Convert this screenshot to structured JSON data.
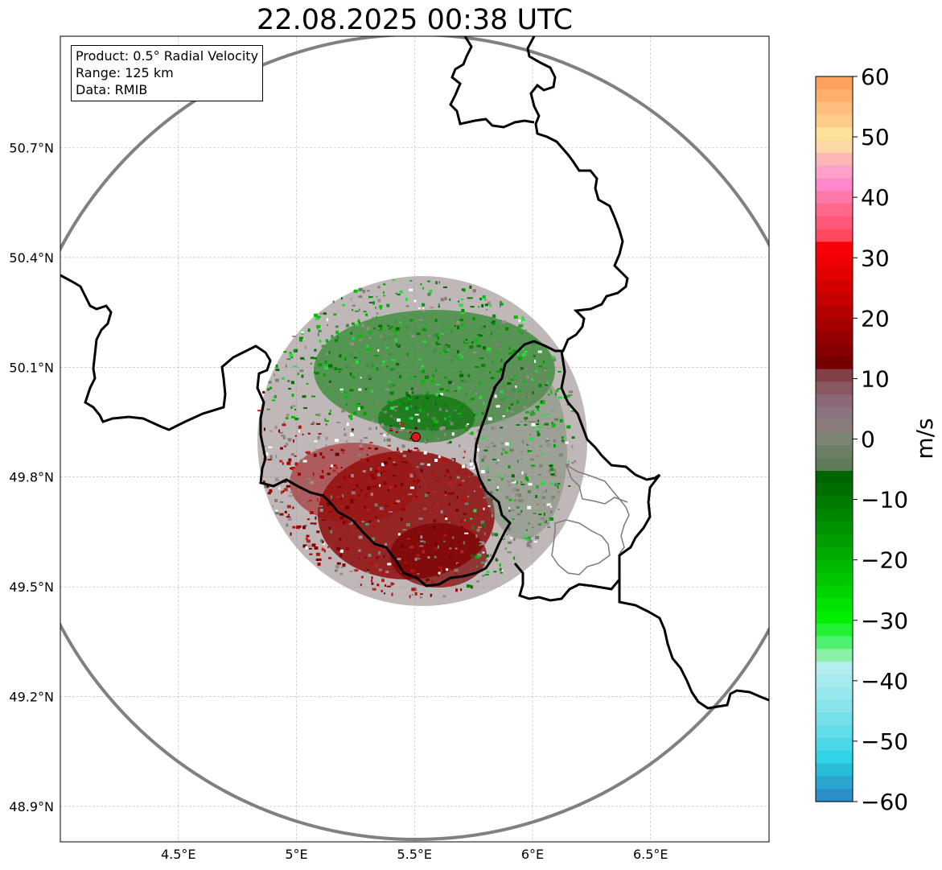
{
  "title": "22.08.2025 00:38 UTC",
  "info_box": {
    "product": "Product: 0.5° Radial Velocity",
    "range": "Range: 125 km",
    "data": "Data: RMIB"
  },
  "map": {
    "lon_range": [
      4.0,
      7.0
    ],
    "lat_range": [
      48.8,
      50.99
    ],
    "x_ticks": [
      {
        "value": 4.5,
        "label": "4.5°E"
      },
      {
        "value": 5.0,
        "label": "5°E"
      },
      {
        "value": 5.5,
        "label": "5.5°E"
      },
      {
        "value": 6.0,
        "label": "6°E"
      },
      {
        "value": 6.5,
        "label": "6.5°E"
      }
    ],
    "y_ticks": [
      {
        "value": 50.7,
        "label": "50.7°N"
      },
      {
        "value": 50.4,
        "label": "50.4°N"
      },
      {
        "value": 50.1,
        "label": "50.1°N"
      },
      {
        "value": 49.8,
        "label": "49.8°N"
      },
      {
        "value": 49.5,
        "label": "49.5°N"
      },
      {
        "value": 49.2,
        "label": "49.2°N"
      },
      {
        "value": 48.9,
        "label": "48.9°N"
      }
    ],
    "radar_site": {
      "lon": 5.505,
      "lat": 49.914,
      "color": "#e8141c"
    },
    "range_ring_color": "#808080"
  },
  "colorbar": {
    "unit": "m/s",
    "min": -60,
    "max": 60,
    "ticks": [
      "60",
      "50",
      "40",
      "30",
      "20",
      "10",
      "0",
      "−10",
      "−20",
      "−30",
      "−40",
      "−50",
      "−60"
    ],
    "colors_top_to_bottom": [
      "#ffa060",
      "#ffae6c",
      "#ffbe7c",
      "#ffcc8a",
      "#ffe29a",
      "#ffd8a8",
      "#ffb6b6",
      "#ffa0c8",
      "#ff88cc",
      "#ff78a8",
      "#ff6888",
      "#ff5878",
      "#ff4860",
      "#f80008",
      "#ee0004",
      "#e20000",
      "#d40000",
      "#c60000",
      "#b40000",
      "#a40000",
      "#940000",
      "#860000",
      "#760000",
      "#844048",
      "#8a5860",
      "#8c6878",
      "#8c7480",
      "#8a7c7a",
      "#7c8474",
      "#6c8068",
      "#5e7c5a",
      "#006400",
      "#006e00",
      "#007a00",
      "#008600",
      "#009200",
      "#009e00",
      "#00aa00",
      "#00b800",
      "#00c600",
      "#00d400",
      "#00e200",
      "#00ee00",
      "#22f032",
      "#50f070",
      "#8cf0a8",
      "#b4eef0",
      "#a6ebee",
      "#96e8ec",
      "#86e4ea",
      "#74e0ea",
      "#60dcea",
      "#4ad8e8",
      "#30d4e6",
      "#28bcd8",
      "#2aa6d0",
      "#2c90c8"
    ]
  }
}
